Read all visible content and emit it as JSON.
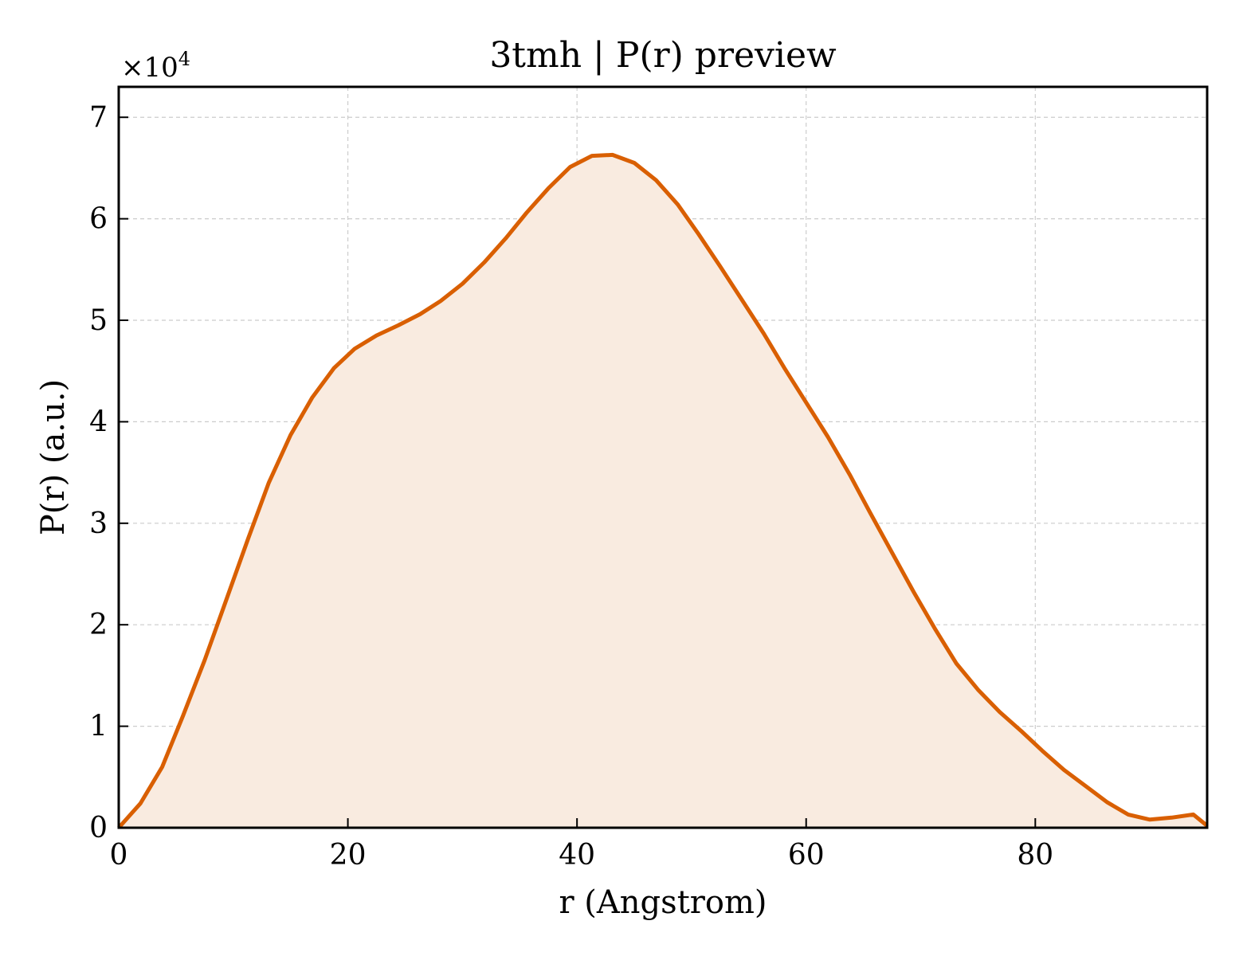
{
  "chart_data": {
    "type": "area",
    "title": "3tmh | P(r) preview",
    "xlabel": "r (Angstrom)",
    "ylabel": "P(r) (a.u.)",
    "y_multiplier": "×10",
    "y_multiplier_exponent": "4",
    "xlim": [
      0,
      95
    ],
    "ylim": [
      0,
      7.3
    ],
    "x_ticks": [
      0,
      20,
      40,
      60,
      80
    ],
    "y_ticks": [
      0,
      1,
      2,
      3,
      4,
      5,
      6,
      7
    ],
    "grid": true,
    "line_color": "#d95f02",
    "fill_color": "#f9ebe0",
    "series": [
      {
        "x": [
          0,
          1.9,
          3.8,
          5.6,
          7.5,
          9.4,
          11.3,
          13.1,
          15.0,
          16.9,
          18.8,
          20.6,
          22.5,
          24.4,
          26.3,
          28.1,
          30.0,
          31.9,
          33.8,
          35.6,
          37.5,
          39.4,
          41.3,
          43.1,
          45.0,
          46.9,
          48.8,
          50.6,
          52.5,
          54.4,
          56.3,
          58.1,
          60.0,
          61.9,
          63.8,
          65.6,
          67.5,
          69.4,
          71.3,
          73.1,
          75.0,
          76.9,
          78.8,
          80.6,
          82.5,
          84.4,
          86.3,
          88.1,
          90.0,
          91.9,
          93.8,
          95.0
        ],
        "y": [
          0,
          0.24,
          0.6,
          1.1,
          1.65,
          2.25,
          2.85,
          3.4,
          3.87,
          4.24,
          4.53,
          4.72,
          4.85,
          4.95,
          5.06,
          5.19,
          5.36,
          5.57,
          5.81,
          6.06,
          6.3,
          6.51,
          6.62,
          6.63,
          6.55,
          6.38,
          6.14,
          5.85,
          5.53,
          5.2,
          4.87,
          4.53,
          4.19,
          3.85,
          3.48,
          3.1,
          2.71,
          2.32,
          1.95,
          1.62,
          1.36,
          1.14,
          0.95,
          0.76,
          0.57,
          0.41,
          0.25,
          0.13,
          0.08,
          0.1,
          0.13,
          0.02
        ]
      }
    ]
  }
}
